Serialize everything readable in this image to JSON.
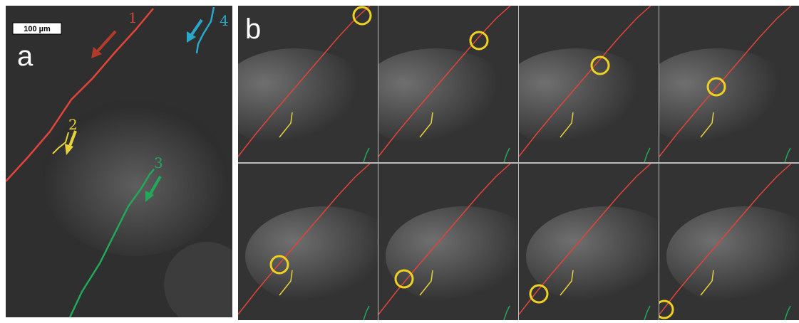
{
  "panel_a": {
    "label": "a",
    "scale_bar": "100 µm",
    "tracks": [
      "1",
      "2",
      "3",
      "4"
    ]
  },
  "panel_b": {
    "label": "b"
  }
}
